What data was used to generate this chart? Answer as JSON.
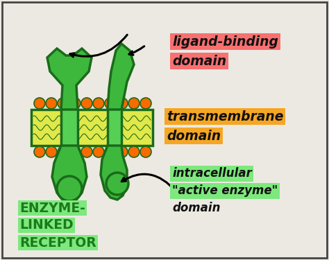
{
  "bg_color": "#ece9e2",
  "border_color": "#444444",
  "labels": {
    "ligand_binding_1": "ligand-binding",
    "ligand_binding_2": "domain",
    "transmembrane_1": "transmembrane",
    "transmembrane_2": "domain",
    "intracellular_1": "intracellular",
    "intracellular_2": "\"active enzyme\"",
    "intracellular_3": "domain",
    "enzyme_1": "ENZYME-",
    "enzyme_2": "LINKED",
    "enzyme_3": "RECEPTOR"
  },
  "highlight_red": "#f87070",
  "highlight_orange": "#f5a623",
  "highlight_green": "#7de87d",
  "green_dark": "#1a6b1a",
  "green_fill": "#3db83d",
  "green_light": "#55d055",
  "yellow_membrane": "#e0e84a",
  "orange_dot": "#f96a00",
  "text_black": "#111111",
  "text_green": "#1a7a1a"
}
